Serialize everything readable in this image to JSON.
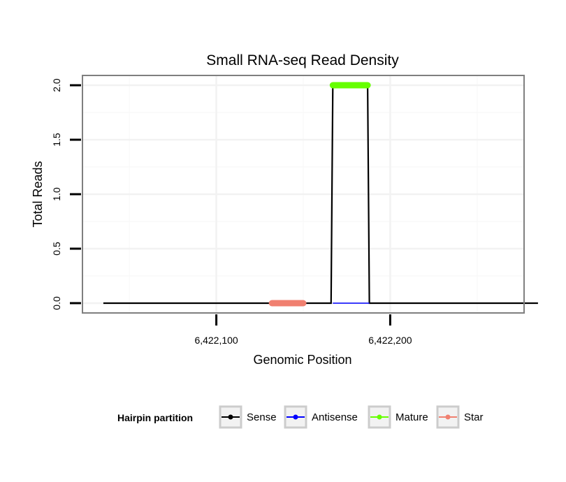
{
  "chart_data": {
    "type": "line",
    "title": "Small RNA-seq Read Density",
    "xlabel": "Genomic Position",
    "ylabel": "Total Reads",
    "xlim": [
      6422023,
      6422277
    ],
    "ylim": [
      -0.09,
      2.09
    ],
    "x_ticks": [
      6422100,
      6422200
    ],
    "x_tick_labels": [
      "6,422,100",
      "6,422,200"
    ],
    "y_ticks": [
      0,
      0.5,
      1,
      1.5,
      2
    ],
    "y_tick_labels": [
      "0.0",
      "0.5",
      "1.0",
      "1.5",
      "2.0"
    ],
    "grid": true,
    "legend": {
      "title": "Hairpin partition",
      "position": "bottom"
    },
    "series": [
      {
        "name": "Sense",
        "color": "#000000",
        "points": [
          [
            6422035,
            0
          ],
          [
            6422166,
            0
          ],
          [
            6422167,
            2
          ],
          [
            6422187,
            2
          ],
          [
            6422188,
            0
          ],
          [
            6422285,
            0
          ]
        ]
      },
      {
        "name": "Antisense",
        "color": "#0000ff",
        "points": [
          [
            6422167,
            0
          ],
          [
            6422188,
            0
          ]
        ]
      },
      {
        "name": "Mature",
        "color": "#66ff00",
        "points": [
          [
            6422167,
            2
          ],
          [
            6422187,
            2
          ]
        ]
      },
      {
        "name": "Star",
        "color": "#f08070",
        "points": [
          [
            6422132,
            0
          ],
          [
            6422150,
            0
          ]
        ]
      }
    ]
  }
}
